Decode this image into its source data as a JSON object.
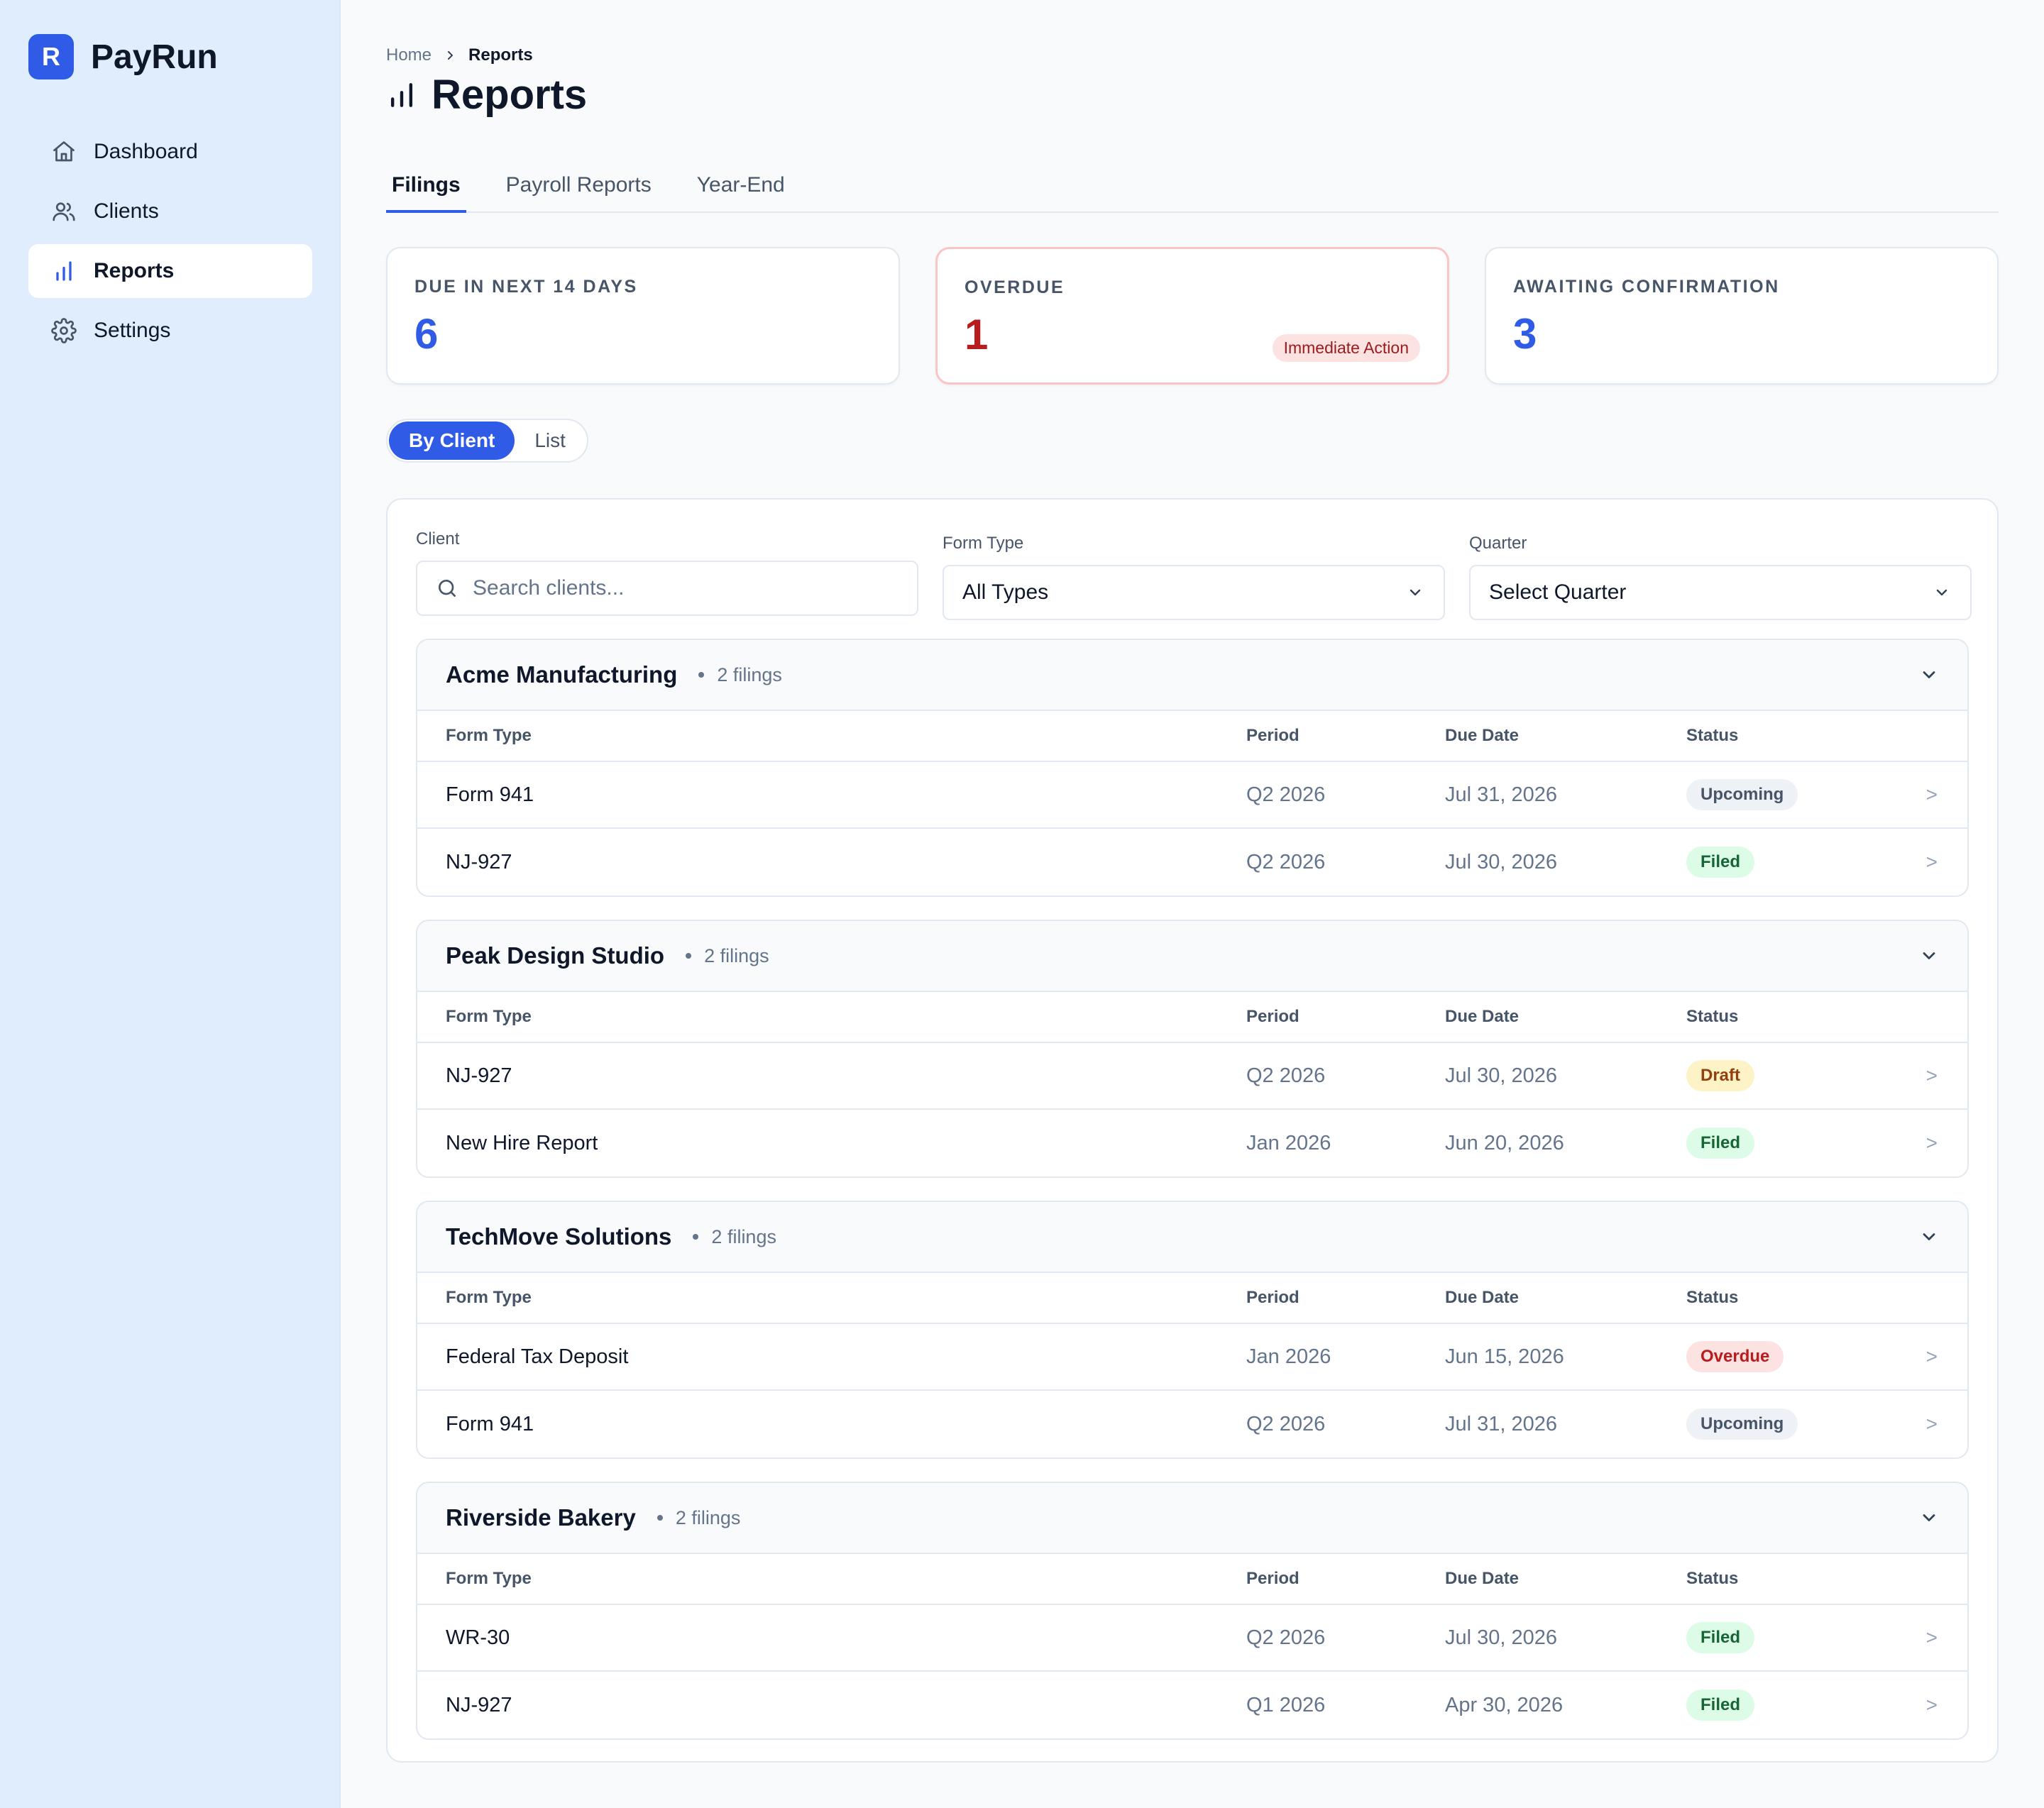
{
  "app": {
    "logo_letter": "R",
    "name": "PayRun"
  },
  "sidebar": {
    "items": [
      {
        "label": "Dashboard",
        "icon": "home-icon"
      },
      {
        "label": "Clients",
        "icon": "users-icon"
      },
      {
        "label": "Reports",
        "icon": "bar-chart-icon",
        "active": true
      },
      {
        "label": "Settings",
        "icon": "gear-icon"
      }
    ]
  },
  "breadcrumb": {
    "home": "Home",
    "current": "Reports"
  },
  "page": {
    "title": "Reports"
  },
  "tabs": [
    {
      "label": "Filings",
      "active": true
    },
    {
      "label": "Payroll Reports"
    },
    {
      "label": "Year-End"
    }
  ],
  "summary": {
    "due": {
      "label": "DUE IN NEXT 14 DAYS",
      "value": "6"
    },
    "overdue": {
      "label": "OVERDUE",
      "value": "1",
      "badge": "Immediate Action"
    },
    "awaiting": {
      "label": "AWAITING CONFIRMATION",
      "value": "3"
    }
  },
  "view_toggle": {
    "by_client": "By Client",
    "list": "List",
    "selected": "By Client"
  },
  "filters": {
    "client": {
      "label": "Client",
      "placeholder": "Search clients..."
    },
    "form_type": {
      "label": "Form Type",
      "value": "All Types"
    },
    "quarter": {
      "label": "Quarter",
      "value": "Select Quarter"
    }
  },
  "table_headers": {
    "form_type": "Form Type",
    "period": "Period",
    "due_date": "Due Date",
    "status": "Status"
  },
  "groups": [
    {
      "client": "Acme Manufacturing",
      "count": "2 filings",
      "rows": [
        {
          "form": "Form 941",
          "period": "Q2 2026",
          "due": "Jul 31, 2026",
          "status": "Upcoming",
          "status_kind": "upcoming"
        },
        {
          "form": "NJ-927",
          "period": "Q2 2026",
          "due": "Jul 30, 2026",
          "status": "Filed",
          "status_kind": "filed"
        }
      ]
    },
    {
      "client": "Peak Design Studio",
      "count": "2 filings",
      "rows": [
        {
          "form": "NJ-927",
          "period": "Q2 2026",
          "due": "Jul 30, 2026",
          "status": "Draft",
          "status_kind": "draft"
        },
        {
          "form": "New Hire Report",
          "period": "Jan 2026",
          "due": "Jun 20, 2026",
          "status": "Filed",
          "status_kind": "filed"
        }
      ]
    },
    {
      "client": "TechMove Solutions",
      "count": "2 filings",
      "rows": [
        {
          "form": "Federal Tax Deposit",
          "period": "Jan 2026",
          "due": "Jun 15, 2026",
          "status": "Overdue",
          "status_kind": "overdue"
        },
        {
          "form": "Form 941",
          "period": "Q2 2026",
          "due": "Jul 31, 2026",
          "status": "Upcoming",
          "status_kind": "upcoming"
        }
      ]
    },
    {
      "client": "Riverside Bakery",
      "count": "2 filings",
      "rows": [
        {
          "form": "WR-30",
          "period": "Q2 2026",
          "due": "Jul 30, 2026",
          "status": "Filed",
          "status_kind": "filed"
        },
        {
          "form": "NJ-927",
          "period": "Q1 2026",
          "due": "Apr 30, 2026",
          "status": "Filed",
          "status_kind": "filed"
        }
      ]
    }
  ],
  "row_chevron": ">",
  "colors": {
    "accent": "#2f5be7",
    "sidebar_bg": "#e0edfd",
    "danger": "#b91c1c"
  }
}
